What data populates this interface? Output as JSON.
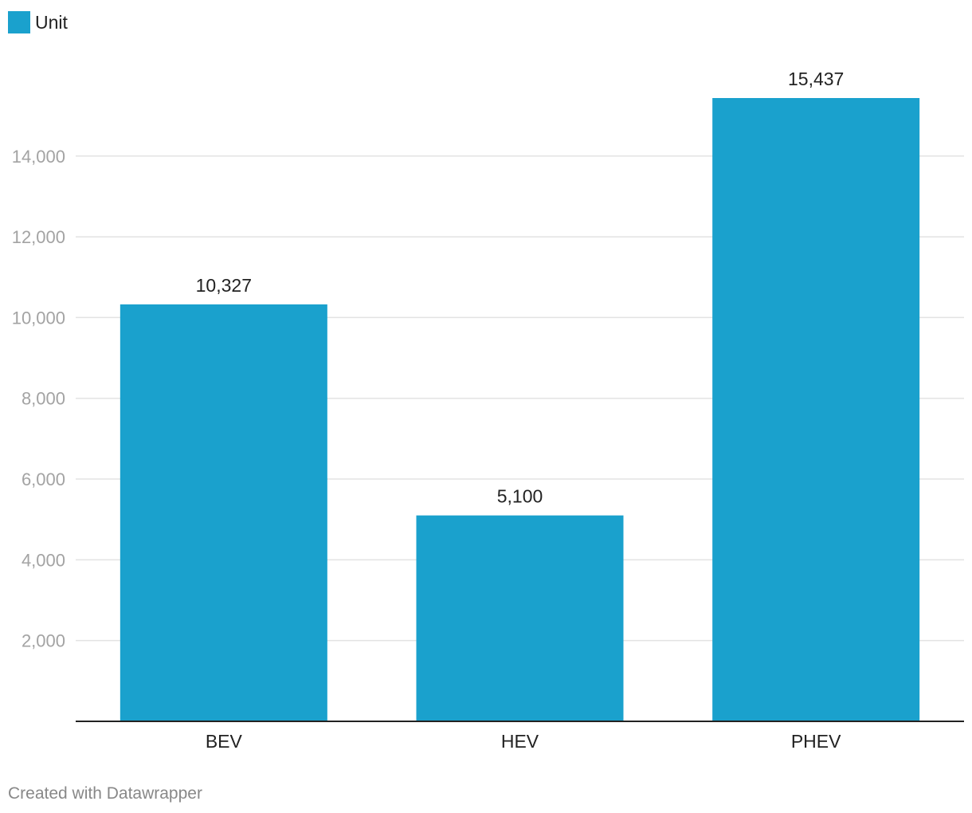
{
  "legend": {
    "label": "Unit",
    "color": "#1aa1cd"
  },
  "footer": {
    "credit": "Created with Datawrapper"
  },
  "chart_data": {
    "type": "bar",
    "categories": [
      "BEV",
      "HEV",
      "PHEV"
    ],
    "series": [
      {
        "name": "Unit",
        "values": [
          10327,
          5100,
          15437
        ]
      }
    ],
    "value_labels": [
      "10,327",
      "5,100",
      "15,437"
    ],
    "y_ticks": [
      2000,
      4000,
      6000,
      8000,
      10000,
      12000,
      14000
    ],
    "y_tick_labels": [
      "2,000",
      "4,000",
      "6,000",
      "8,000",
      "10,000",
      "12,000",
      "14,000"
    ],
    "ylim": [
      0,
      15437
    ],
    "grid": true,
    "legend_position": "top-left",
    "bar_color": "#1aa1cd",
    "title": "",
    "xlabel": "",
    "ylabel": ""
  }
}
